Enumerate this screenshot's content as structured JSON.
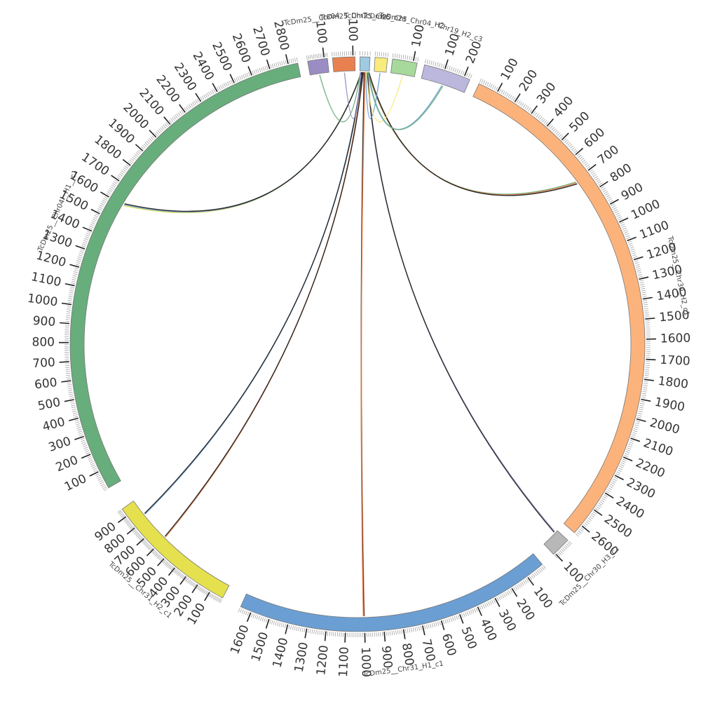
{
  "segments": [
    {
      "id": "c31h1c1",
      "name": "TcDm25__Chr31_H1_c1",
      "length": 1660,
      "color": "#6b9fd3",
      "label_every": 100
    },
    {
      "id": "c31h2c1",
      "name": "TcDm25__Chr31_H2_c1",
      "length": 960,
      "color": "#e5e04e",
      "label_every": 100
    },
    {
      "id": "c04h1c1",
      "name": "TcDm25__Chr04__H1__c1",
      "length": 2850,
      "color": "#68ad7c",
      "label_every": 100
    },
    {
      "id": "s_purple",
      "name": "TcDm25__Chr04",
      "length": 120,
      "color": "#9b8cc4",
      "label_every": 100
    },
    {
      "id": "s_orange",
      "name": "TcDm25_Chr",
      "length": 110,
      "color": "#e8814f",
      "label_every": 100
    },
    {
      "id": "s_blue",
      "name": "TcDm25_Chr",
      "length": 40,
      "color": "#9ecae2",
      "label_every": 0
    },
    {
      "id": "s_yellow",
      "name": "TcDm25_Chr",
      "length": 60,
      "color": "#f7ec7c",
      "label_every": 0
    },
    {
      "id": "s_green",
      "name": "TcDm25_Chr04_H2",
      "length": 120,
      "color": "#a6d99b",
      "label_every": 100
    },
    {
      "id": "s_lav",
      "name": "Chr19_H2_c3",
      "length": 230,
      "color": "#bcb7dc",
      "label_every": 100
    },
    {
      "id": "c30h2c1",
      "name": "TcDm25__Chr30_H2_c1",
      "length": 2650,
      "color": "#fcb37b",
      "label_every": 100
    },
    {
      "id": "c30h3c2",
      "name": "TcDm25__Chr30_H3_c2",
      "length": 110,
      "color": "#b7b7b7",
      "label_every": 100
    }
  ],
  "links": [
    {
      "from": "s_blue",
      "from_pos": 20,
      "to": "c31h1c1",
      "to_pos": 1000,
      "color": "#e8814f"
    },
    {
      "from": "s_blue",
      "from_pos": 18,
      "to": "c31h1c1",
      "to_pos": 1003,
      "color": "#1a1a1a"
    },
    {
      "from": "s_blue",
      "from_pos": 22,
      "to": "c31h1c1",
      "to_pos": 1006,
      "color": "#e8814f"
    },
    {
      "from": "s_blue",
      "from_pos": 12,
      "to": "c31h2c1",
      "to_pos": 600,
      "color": "#e8814f"
    },
    {
      "from": "s_blue",
      "from_pos": 14,
      "to": "c31h2c1",
      "to_pos": 606,
      "color": "#1a1a1a"
    },
    {
      "from": "s_blue",
      "from_pos": 8,
      "to": "c31h2c1",
      "to_pos": 830,
      "color": "#6b9fd3"
    },
    {
      "from": "s_blue",
      "from_pos": 10,
      "to": "c31h2c1",
      "to_pos": 836,
      "color": "#1a1a1a"
    },
    {
      "from": "s_blue",
      "from_pos": 30,
      "to": "c30h3c2",
      "to_pos": 15,
      "color": "#9b8cc4"
    },
    {
      "from": "s_blue",
      "from_pos": 32,
      "to": "c30h3c2",
      "to_pos": 20,
      "color": "#1a1a1a"
    },
    {
      "from": "s_blue",
      "from_pos": 5,
      "to": "c04h1c1",
      "to_pos": 1600,
      "color": "#e5e04e"
    },
    {
      "from": "s_blue",
      "from_pos": 6,
      "to": "c04h1c1",
      "to_pos": 1606,
      "color": "#6b9fd3"
    },
    {
      "from": "s_blue",
      "from_pos": 7,
      "to": "c04h1c1",
      "to_pos": 1612,
      "color": "#1a1a1a"
    },
    {
      "from": "s_blue",
      "from_pos": 34,
      "to": "c30h2c1",
      "to_pos": 710,
      "color": "#68ad7c"
    },
    {
      "from": "s_blue",
      "from_pos": 36,
      "to": "c30h2c1",
      "to_pos": 716,
      "color": "#e8814f"
    },
    {
      "from": "s_blue",
      "from_pos": 38,
      "to": "c30h2c1",
      "to_pos": 722,
      "color": "#1a1a1a"
    },
    {
      "from": "s_purple",
      "from_pos": 60,
      "to": "s_blue",
      "to_pos": 2,
      "color": "#68ad7c"
    },
    {
      "from": "s_orange",
      "from_pos": 55,
      "to": "s_blue",
      "to_pos": 3,
      "color": "#9b8cc4"
    },
    {
      "from": "s_yellow",
      "from_pos": 30,
      "to": "s_blue",
      "to_pos": 25,
      "color": "#6b9fd3"
    },
    {
      "from": "s_green",
      "from_pos": 60,
      "to": "s_blue",
      "to_pos": 27,
      "color": "#f7ec7c"
    },
    {
      "from": "s_lav",
      "from_pos": 110,
      "to": "s_blue",
      "to_pos": 33,
      "color": "#6b9fd3"
    },
    {
      "from": "s_lav",
      "from_pos": 116,
      "to": "s_blue",
      "to_pos": 35,
      "color": "#68ad7c"
    }
  ]
}
